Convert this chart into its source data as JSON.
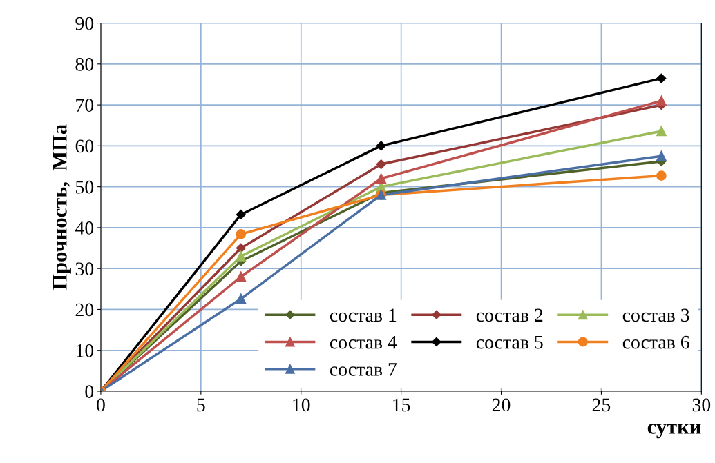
{
  "chart_data": {
    "type": "line",
    "xlabel": "сутки",
    "ylabel": "Прочность,  МПа",
    "x": [
      0,
      7,
      14,
      28
    ],
    "xlim": [
      0,
      30
    ],
    "xticks": [
      0,
      5,
      10,
      15,
      20,
      25,
      30
    ],
    "ylim": [
      0,
      90
    ],
    "yticks": [
      0,
      10,
      20,
      30,
      40,
      50,
      60,
      70,
      80,
      90
    ],
    "grid": true,
    "legend": "bottom right",
    "line_style": "solid",
    "series": [
      {
        "name": "состав 1",
        "color": "#4f6228",
        "marker": "diamond",
        "values": [
          0,
          31.8,
          48.5,
          56.2
        ]
      },
      {
        "name": "состав 2",
        "color": "#953735",
        "marker": "diamond",
        "values": [
          0,
          35,
          55.5,
          70
        ]
      },
      {
        "name": "состав 3",
        "color": "#9bbb59",
        "marker": "triangle",
        "values": [
          0,
          33,
          50,
          63.6
        ]
      },
      {
        "name": "состав 4",
        "color": "#c0504d",
        "marker": "triangle",
        "values": [
          0,
          28,
          52,
          71
        ]
      },
      {
        "name": "состав 5",
        "color": "#000000",
        "marker": "diamond",
        "values": [
          0,
          43.2,
          60,
          76.5
        ]
      },
      {
        "name": "состав 6",
        "color": "#f07f20",
        "marker": "circle",
        "values": [
          0,
          38.4,
          48,
          52.7
        ]
      },
      {
        "name": "состав 7",
        "color": "#4a6fa5",
        "marker": "triangle",
        "values": [
          0,
          22.6,
          48,
          57.5
        ]
      }
    ]
  }
}
